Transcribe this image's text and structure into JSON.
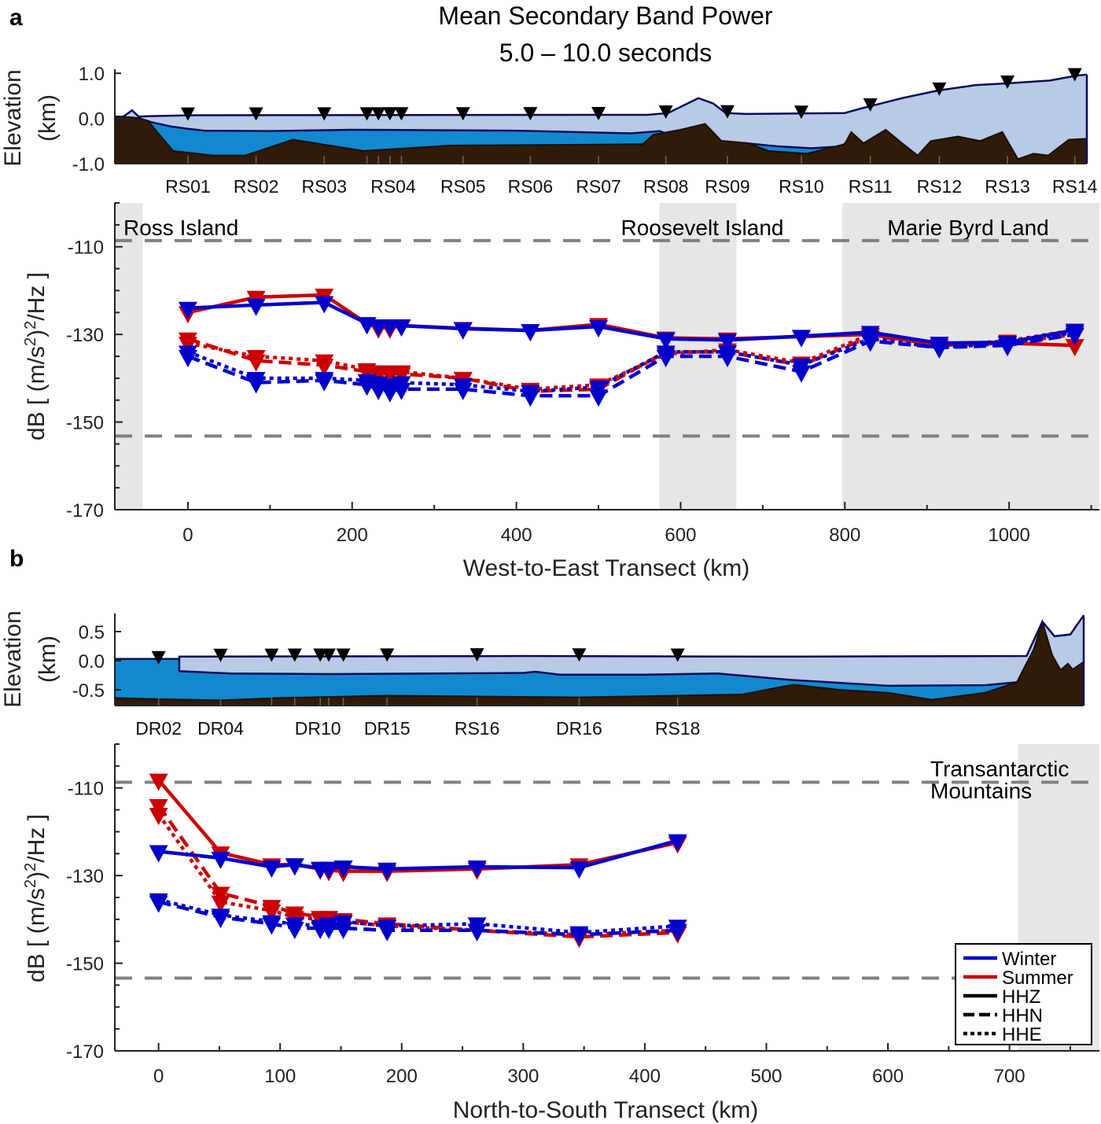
{
  "title": {
    "line1": "Mean Secondary Band Power",
    "line2": "5.0 – 10.0 seconds"
  },
  "colors": {
    "winter": "#0000cc",
    "summer": "#cc0000",
    "ice": "#b9cae6",
    "water": "#1289cf",
    "bed": "#301b08",
    "outline": "#0a0a5a",
    "shade": "#e6e6e6",
    "ref": "#808080"
  },
  "legend": {
    "items": [
      {
        "label": "Winter",
        "kind": "color",
        "color": "#0000cc"
      },
      {
        "label": "Summer",
        "kind": "color",
        "color": "#cc0000"
      },
      {
        "label": "HHZ",
        "kind": "solid"
      },
      {
        "label": "HHN",
        "kind": "dashed"
      },
      {
        "label": "HHE",
        "kind": "dotted"
      }
    ],
    "placement": "bottom-right (panel b)"
  },
  "chart_data": [
    {
      "panel": "a",
      "type": "line",
      "xlabel": "West-to-East Transect (km)",
      "ylabel_parts": [
        "dB [ (m/s",
        "2",
        ")",
        "2",
        "/Hz ]"
      ],
      "xlim": [
        -89,
        1110
      ],
      "ylim": [
        -170,
        -100
      ],
      "xticks": [
        0,
        200,
        400,
        600,
        800,
        1000
      ],
      "yticks": [
        -110,
        -130,
        -150,
        -170
      ],
      "reference_lines": [
        -108.6,
        -153.2
      ],
      "shaded_regions": [
        {
          "label": "Ross Island",
          "range": [
            -89,
            -55
          ]
        },
        {
          "label": "Roosevelt Island",
          "range": [
            574,
            668
          ]
        },
        {
          "label": "Marie Byrd Land",
          "range": [
            797,
            1110
          ]
        }
      ],
      "x": [
        0,
        83,
        166,
        218,
        232,
        246,
        260,
        335,
        417,
        500,
        582,
        657,
        747,
        831,
        915,
        998,
        1080
      ],
      "series": [
        {
          "name": "Summer HHZ",
          "season": "summer",
          "component": "HHZ",
          "values": [
            -125,
            -121.5,
            -121,
            -127.5,
            -128.5,
            -128.5,
            -128,
            -128.6,
            -129.1,
            -127.7,
            -130.8,
            -131,
            -130.5,
            -130,
            -132.5,
            -132,
            -132.5
          ]
        },
        {
          "name": "Summer HHN",
          "season": "summer",
          "component": "HHN",
          "values": [
            -131,
            -136,
            -137,
            -138.5,
            -139,
            -139,
            -139,
            -140,
            -143,
            -142.5,
            -134,
            -134,
            -137,
            -130.5,
            -132,
            -132,
            -130
          ]
        },
        {
          "name": "Summer HHE",
          "season": "summer",
          "component": "HHE",
          "values": [
            -132,
            -135,
            -136,
            -138,
            -138.5,
            -138.5,
            -138.5,
            -140,
            -142.5,
            -141.5,
            -134.5,
            -133.5,
            -136.5,
            -130,
            -132.5,
            -131.5,
            -129
          ]
        },
        {
          "name": "Winter HHZ",
          "season": "winter",
          "component": "HHZ",
          "values": [
            -124,
            -123.3,
            -122.7,
            -127.5,
            -128,
            -128,
            -128,
            -128.7,
            -129.1,
            -128.2,
            -131,
            -131.3,
            -130.4,
            -129.5,
            -132,
            -131.8,
            -129
          ]
        },
        {
          "name": "Winter HHN",
          "season": "winter",
          "component": "HHN",
          "values": [
            -135,
            -141,
            -140.5,
            -141.5,
            -142.5,
            -143,
            -142.5,
            -142.5,
            -144,
            -144,
            -135,
            -135,
            -138.5,
            -131.5,
            -133,
            -132.5,
            -130
          ]
        },
        {
          "name": "Winter HHE",
          "season": "winter",
          "component": "HHE",
          "values": [
            -134,
            -140,
            -140,
            -140.5,
            -141,
            -141.5,
            -141,
            -141.5,
            -143,
            -142,
            -134,
            -134,
            -137,
            -131,
            -133,
            -132,
            -129.5
          ]
        }
      ],
      "elevation": {
        "ylabel": [
          "Elevation",
          "(km)"
        ],
        "ylim": [
          -1.0,
          1.09
        ],
        "yticks": [
          {
            "v": 1.0,
            "label": "1.0"
          },
          {
            "v": 0.0,
            "label": "0.0"
          },
          {
            "v": -1.0,
            "label": "-1.0"
          }
        ],
        "xlim": [
          -89,
          1095
        ],
        "stations": [
          {
            "label": "RS01",
            "km": 0
          },
          {
            "label": "RS02",
            "km": 83
          },
          {
            "label": "RS03",
            "km": 166
          },
          {
            "label": "RS04",
            "km": 250
          },
          {
            "label": "RS05",
            "km": 335
          },
          {
            "label": "RS06",
            "km": 417
          },
          {
            "label": "RS07",
            "km": 500
          },
          {
            "label": "RS08",
            "km": 582
          },
          {
            "label": "RS09",
            "km": 657
          },
          {
            "label": "RS10",
            "km": 747
          },
          {
            "label": "RS11",
            "km": 831
          },
          {
            "label": "RS12",
            "km": 915
          },
          {
            "label": "RS13",
            "km": 998
          },
          {
            "label": "RS14",
            "km": 1080
          }
        ],
        "surface": [
          [
            -89,
            0.0
          ],
          [
            -78,
            0.05
          ],
          [
            -68,
            0.18
          ],
          [
            -60,
            0.04
          ],
          [
            -50,
            0.05
          ],
          [
            0,
            0.07
          ],
          [
            560,
            0.08
          ],
          [
            585,
            0.12
          ],
          [
            605,
            0.3
          ],
          [
            622,
            0.45
          ],
          [
            640,
            0.33
          ],
          [
            655,
            0.12
          ],
          [
            680,
            0.1
          ],
          [
            800,
            0.12
          ],
          [
            820,
            0.22
          ],
          [
            870,
            0.45
          ],
          [
            914,
            0.62
          ],
          [
            960,
            0.74
          ],
          [
            1001,
            0.78
          ],
          [
            1050,
            0.84
          ],
          [
            1083,
            0.95
          ],
          [
            1095,
            0.97
          ]
        ],
        "water_segments": [
          [
            [
              -62,
              0.02
            ],
            [
              -45,
              -0.08
            ],
            [
              -20,
              -0.18
            ],
            [
              0,
              -0.23
            ],
            [
              20,
              -0.27
            ],
            [
              100,
              -0.28
            ],
            [
              200,
              -0.25
            ],
            [
              400,
              -0.27
            ],
            [
              540,
              -0.33
            ],
            [
              575,
              -0.28
            ],
            [
              590,
              -0.4
            ]
          ],
          [
            [
              650,
              -0.5
            ],
            [
              680,
              -0.55
            ],
            [
              720,
              -0.62
            ],
            [
              760,
              -0.66
            ],
            [
              795,
              -0.62
            ],
            [
              805,
              -0.5
            ]
          ]
        ],
        "bed": [
          [
            -89,
            0.05
          ],
          [
            -65,
            0.02
          ],
          [
            -49,
            -0.05
          ],
          [
            -18,
            -0.72
          ],
          [
            30,
            -0.82
          ],
          [
            70,
            -0.82
          ],
          [
            128,
            -0.47
          ],
          [
            214,
            -0.72
          ],
          [
            320,
            -0.6
          ],
          [
            554,
            -0.57
          ],
          [
            567,
            -0.36
          ],
          [
            600,
            -0.25
          ],
          [
            630,
            -0.12
          ],
          [
            650,
            -0.5
          ],
          [
            683,
            -0.55
          ],
          [
            707,
            -0.72
          ],
          [
            754,
            -0.78
          ],
          [
            800,
            -0.57
          ],
          [
            808,
            -0.3
          ],
          [
            823,
            -0.55
          ],
          [
            850,
            -0.25
          ],
          [
            870,
            -0.55
          ],
          [
            889,
            -0.82
          ],
          [
            905,
            -0.5
          ],
          [
            938,
            -0.4
          ],
          [
            965,
            -0.5
          ],
          [
            992,
            -0.3
          ],
          [
            1011,
            -0.9
          ],
          [
            1030,
            -0.78
          ],
          [
            1048,
            -0.82
          ],
          [
            1073,
            -0.47
          ],
          [
            1095,
            -0.45
          ]
        ]
      }
    },
    {
      "panel": "b",
      "type": "line",
      "xlabel": "North-to-South Transect (km)",
      "ylabel_parts": [
        "dB [ (m/s",
        "2",
        ")",
        "2",
        "/Hz ]"
      ],
      "xlim": [
        -36,
        774
      ],
      "ylim": [
        -170,
        -100
      ],
      "xticks": [
        0,
        100,
        200,
        300,
        400,
        500,
        600,
        700
      ],
      "yticks": [
        -110,
        -130,
        -150,
        -170
      ],
      "reference_lines": [
        -108.7,
        -153.4
      ],
      "shaded_regions": [
        {
          "label_lines": [
            "Transantarctic",
            "Mountains"
          ],
          "range": [
            707,
            774
          ]
        }
      ],
      "x": [
        0,
        51,
        93,
        112,
        133,
        140,
        152,
        188,
        262,
        346,
        427
      ],
      "series": [
        {
          "name": "Summer HHZ",
          "season": "summer",
          "component": "HHZ",
          "values": [
            -108.2,
            -124.8,
            -127.5,
            -127.5,
            -128.5,
            -128.8,
            -129,
            -129,
            -128.5,
            -127.5,
            -122.5
          ]
        },
        {
          "name": "Summer HHN",
          "season": "summer",
          "component": "HHN",
          "values": [
            -114,
            -134,
            -137,
            -138.5,
            -139.5,
            -139.5,
            -140,
            -141,
            -142.5,
            -144,
            -143
          ]
        },
        {
          "name": "Summer HHE",
          "season": "summer",
          "component": "HHE",
          "values": [
            -116,
            -136,
            -138,
            -139.5,
            -140,
            -140,
            -140.5,
            -141.5,
            -142.5,
            -143.5,
            -142.5
          ]
        },
        {
          "name": "Winter HHZ",
          "season": "winter",
          "component": "HHZ",
          "values": [
            -124.5,
            -126,
            -128,
            -127.5,
            -128.3,
            -128.3,
            -128,
            -128.5,
            -128,
            -128.2,
            -122
          ]
        },
        {
          "name": "Winter HHN",
          "season": "winter",
          "component": "HHN",
          "values": [
            -136,
            -139.5,
            -141,
            -142,
            -142,
            -142,
            -142,
            -142.5,
            -142.5,
            -143.5,
            -142.5
          ]
        },
        {
          "name": "Winter HHE",
          "season": "winter",
          "component": "HHE",
          "values": [
            -135.5,
            -139,
            -140.5,
            -141,
            -141.5,
            -141,
            -140.5,
            -141.5,
            -141,
            -143,
            -141.5
          ]
        }
      ],
      "elevation": {
        "ylabel": [
          "Elevation",
          "(km)"
        ],
        "ylim": [
          -0.77,
          0.81
        ],
        "yticks": [
          {
            "v": 0.5,
            "label": "0.5"
          },
          {
            "v": 0.0,
            "label": "0.0"
          },
          {
            "v": -0.5,
            "label": "-0.5"
          }
        ],
        "xlim": [
          -36,
          761
        ],
        "stations": [
          {
            "label": "DR02",
            "km": 0
          },
          {
            "label": "DR04",
            "km": 51
          },
          {
            "label": "DR10",
            "km": 131
          },
          {
            "label": "DR15",
            "km": 188
          },
          {
            "label": "RS16",
            "km": 262
          },
          {
            "label": "DR16",
            "km": 346
          },
          {
            "label": "RS18",
            "km": 427
          }
        ],
        "surface": [
          [
            -36,
            0.03
          ],
          [
            17,
            0.03
          ],
          [
            17,
            0.07
          ],
          [
            300,
            0.08
          ],
          [
            500,
            0.07
          ],
          [
            714,
            0.08
          ],
          [
            727,
            0.67
          ],
          [
            737,
            0.42
          ],
          [
            750,
            0.45
          ],
          [
            761,
            0.78
          ]
        ],
        "water_segments": [
          [
            [
              -36,
              0.03
            ],
            [
              17,
              0.03
            ],
            [
              17,
              -0.18
            ],
            [
              60,
              -0.22
            ],
            [
              140,
              -0.23
            ],
            [
              300,
              -0.21
            ],
            [
              310,
              -0.19
            ],
            [
              330,
              -0.24
            ],
            [
              400,
              -0.24
            ],
            [
              460,
              -0.22
            ],
            [
              520,
              -0.33
            ],
            [
              600,
              -0.43
            ],
            [
              680,
              -0.42
            ],
            [
              706,
              -0.37
            ],
            [
              712,
              -0.3
            ]
          ]
        ],
        "bed": [
          [
            -36,
            -0.64
          ],
          [
            0,
            -0.66
          ],
          [
            51,
            -0.68
          ],
          [
            100,
            -0.64
          ],
          [
            188,
            -0.6
          ],
          [
            346,
            -0.63
          ],
          [
            427,
            -0.6
          ],
          [
            480,
            -0.58
          ],
          [
            522,
            -0.41
          ],
          [
            560,
            -0.5
          ],
          [
            600,
            -0.55
          ],
          [
            636,
            -0.67
          ],
          [
            680,
            -0.55
          ],
          [
            706,
            -0.37
          ],
          [
            720,
            0.2
          ],
          [
            727,
            0.67
          ],
          [
            735,
            0.1
          ],
          [
            742,
            -0.16
          ],
          [
            748,
            -0.05
          ],
          [
            752,
            -0.15
          ],
          [
            761,
            -0.02
          ]
        ]
      }
    }
  ]
}
